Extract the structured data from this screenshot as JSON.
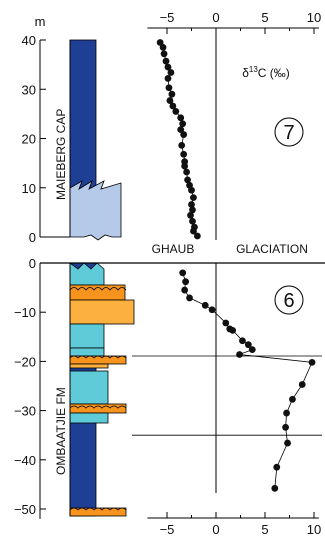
{
  "chart_data": {
    "type": "scatter",
    "depth_unit": "m",
    "x_axis_label": "δ13C (‰)",
    "x_ticks": [
      -5,
      0,
      5,
      10
    ],
    "x_range": [
      -7,
      10.5
    ],
    "upper_panel": {
      "y_range": [
        0,
        40
      ],
      "y_ticks": [
        0,
        10,
        20,
        30,
        40
      ],
      "formation": "MAIEBERG CAP",
      "sequence": "7",
      "points": [
        {
          "x": -5.7,
          "y": 39.5
        },
        {
          "x": -5.4,
          "y": 38.5
        },
        {
          "x": -5.3,
          "y": 37.2
        },
        {
          "x": -5.1,
          "y": 35.7
        },
        {
          "x": -4.9,
          "y": 34.5
        },
        {
          "x": -4.6,
          "y": 33.4
        },
        {
          "x": -4.9,
          "y": 32.2
        },
        {
          "x": -4.8,
          "y": 30.3
        },
        {
          "x": -4.5,
          "y": 29.0
        },
        {
          "x": -4.7,
          "y": 27.7
        },
        {
          "x": -4.4,
          "y": 26.6
        },
        {
          "x": -4.1,
          "y": 25.5
        },
        {
          "x": -3.6,
          "y": 24.2
        },
        {
          "x": -3.4,
          "y": 23.0
        },
        {
          "x": -3.6,
          "y": 21.8
        },
        {
          "x": -3.3,
          "y": 20.8
        },
        {
          "x": -3.5,
          "y": 18.6
        },
        {
          "x": -3.3,
          "y": 16.8
        },
        {
          "x": -3.2,
          "y": 15.3
        },
        {
          "x": -3.2,
          "y": 14.4
        },
        {
          "x": -3.0,
          "y": 13.2
        },
        {
          "x": -2.9,
          "y": 11.6
        },
        {
          "x": -2.7,
          "y": 10.5
        },
        {
          "x": -2.5,
          "y": 9.5
        },
        {
          "x": -2.3,
          "y": 8.0
        },
        {
          "x": -2.5,
          "y": 6.6
        },
        {
          "x": -2.4,
          "y": 5.5
        },
        {
          "x": -2.6,
          "y": 4.4
        },
        {
          "x": -2.4,
          "y": 3.2
        },
        {
          "x": -2.2,
          "y": 2.0
        },
        {
          "x": -2.3,
          "y": 1.2
        },
        {
          "x": -1.9,
          "y": 0.2
        }
      ]
    },
    "lower_panel": {
      "y_range": [
        -52,
        0
      ],
      "y_ticks": [
        0,
        -10,
        -20,
        -30,
        -40,
        -50
      ],
      "formation": "OMBAATJIE FM",
      "sequence": "6",
      "points": [
        {
          "x": -3.4,
          "y": -2.0
        },
        {
          "x": -3.1,
          "y": -3.8
        },
        {
          "x": -3.2,
          "y": -5.5
        },
        {
          "x": -2.7,
          "y": -7.1
        },
        {
          "x": -1.1,
          "y": -8.6
        },
        {
          "x": -0.4,
          "y": -9.5
        },
        {
          "x": 1.0,
          "y": -12.2
        },
        {
          "x": 1.4,
          "y": -13.4
        },
        {
          "x": 1.7,
          "y": -13.7
        },
        {
          "x": 2.7,
          "y": -15.8
        },
        {
          "x": 3.3,
          "y": -16.6
        },
        {
          "x": 3.7,
          "y": -17.6
        },
        {
          "x": 2.4,
          "y": -18.6
        },
        {
          "x": 9.8,
          "y": -20.2
        },
        {
          "x": 8.8,
          "y": -24.7
        },
        {
          "x": 7.8,
          "y": -27.7
        },
        {
          "x": 7.2,
          "y": -30.5
        },
        {
          "x": 7.1,
          "y": -33.4
        },
        {
          "x": 7.3,
          "y": -36.6
        },
        {
          "x": 6.2,
          "y": -41.5
        },
        {
          "x": 6.0,
          "y": -45.8
        }
      ],
      "marker_lines": [
        -18.9,
        -35.0
      ]
    },
    "boundary_labels": [
      "GHAUB",
      "GLACIATION"
    ]
  }
}
